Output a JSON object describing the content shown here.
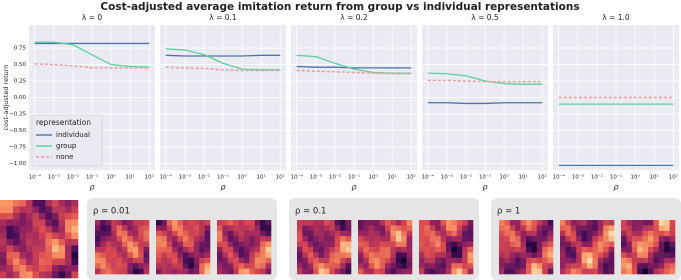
{
  "title": "Cost-adjusted average imitation return from group vs individual representations",
  "chart_data": [
    {
      "type": "line",
      "title": "λ = 0",
      "xlabel": "ρ",
      "ylabel": "cost-adjusted return",
      "log_x": true,
      "grid": true,
      "legend": "lower left",
      "legend_title": "representation",
      "x": [
        0.0001,
        0.001,
        0.01,
        0.1,
        1,
        10,
        100
      ],
      "xlim": [
        5e-05,
        200
      ],
      "xticks": [
        {
          "value": 0.0001,
          "label": "10⁻⁴"
        },
        {
          "value": 0.001,
          "label": "10⁻³"
        },
        {
          "value": 0.01,
          "label": "10⁻²"
        },
        {
          "value": 0.1,
          "label": "10⁻¹"
        },
        {
          "value": 1,
          "label": "10⁰"
        },
        {
          "value": 10,
          "label": "10¹"
        },
        {
          "value": 100,
          "label": "10²"
        }
      ],
      "ylim": [
        -1.1,
        1.1
      ],
      "yticks": [
        {
          "value": -1,
          "label": "−1.00"
        },
        {
          "value": -0.75,
          "label": "−0.75"
        },
        {
          "value": -0.5,
          "label": "−0.50"
        },
        {
          "value": -0.25,
          "label": "−0.25"
        },
        {
          "value": 0,
          "label": "0.00"
        },
        {
          "value": 0.25,
          "label": "0.25"
        },
        {
          "value": 0.5,
          "label": "0.50"
        },
        {
          "value": 0.75,
          "label": "0.75"
        }
      ],
      "series": [
        {
          "name": "individual",
          "color": "#4c72b0",
          "values": [
            0.82,
            0.82,
            0.82,
            0.82,
            0.82,
            0.82,
            0.82
          ]
        },
        {
          "name": "group",
          "color": "#5ccf9c",
          "values": [
            0.84,
            0.84,
            0.8,
            0.65,
            0.5,
            0.47,
            0.46
          ]
        },
        {
          "name": "none",
          "color": "#ee9a9a",
          "dashed": true,
          "values": [
            0.51,
            0.5,
            0.48,
            0.45,
            0.45,
            0.45,
            0.45
          ]
        }
      ]
    },
    {
      "type": "line",
      "title": "λ = 0.1",
      "xlabel": "ρ",
      "log_x": true,
      "grid": true,
      "x": [
        0.0001,
        0.001,
        0.01,
        0.1,
        1,
        10,
        100
      ],
      "xlim": [
        5e-05,
        200
      ],
      "xticks": [
        {
          "value": 0.0001,
          "label": "10⁻⁴"
        },
        {
          "value": 0.001,
          "label": "10⁻³"
        },
        {
          "value": 0.01,
          "label": "10⁻²"
        },
        {
          "value": 0.1,
          "label": "10⁻¹"
        },
        {
          "value": 1,
          "label": "10⁰"
        },
        {
          "value": 10,
          "label": "10¹"
        },
        {
          "value": 100,
          "label": "10²"
        }
      ],
      "ylim": [
        -1.1,
        1.1
      ],
      "series": [
        {
          "color": "#4c72b0",
          "values": [
            0.64,
            0.63,
            0.63,
            0.63,
            0.63,
            0.64,
            0.64
          ]
        },
        {
          "color": "#5ccf9c",
          "values": [
            0.74,
            0.72,
            0.65,
            0.52,
            0.43,
            0.42,
            0.42
          ]
        },
        {
          "color": "#ee9a9a",
          "dashed": true,
          "values": [
            0.46,
            0.45,
            0.44,
            0.42,
            0.41,
            0.41,
            0.41
          ]
        }
      ]
    },
    {
      "type": "line",
      "title": "λ = 0.2",
      "xlabel": "ρ",
      "log_x": true,
      "grid": true,
      "x": [
        0.0001,
        0.001,
        0.01,
        0.1,
        1,
        10,
        100
      ],
      "xlim": [
        5e-05,
        200
      ],
      "xticks": [
        {
          "value": 0.0001,
          "label": "10⁻⁴"
        },
        {
          "value": 0.001,
          "label": "10⁻³"
        },
        {
          "value": 0.01,
          "label": "10⁻²"
        },
        {
          "value": 0.1,
          "label": "10⁻¹"
        },
        {
          "value": 1,
          "label": "10⁰"
        },
        {
          "value": 10,
          "label": "10¹"
        },
        {
          "value": 100,
          "label": "10²"
        }
      ],
      "ylim": [
        -1.1,
        1.1
      ],
      "series": [
        {
          "color": "#4c72b0",
          "values": [
            0.47,
            0.46,
            0.46,
            0.45,
            0.45,
            0.45,
            0.45
          ]
        },
        {
          "color": "#5ccf9c",
          "values": [
            0.64,
            0.62,
            0.52,
            0.43,
            0.38,
            0.37,
            0.37
          ]
        },
        {
          "color": "#ee9a9a",
          "dashed": true,
          "values": [
            0.41,
            0.4,
            0.39,
            0.38,
            0.37,
            0.36,
            0.36
          ]
        }
      ]
    },
    {
      "type": "line",
      "title": "λ = 0.5",
      "xlabel": "ρ",
      "log_x": true,
      "grid": true,
      "x": [
        0.0001,
        0.001,
        0.01,
        0.1,
        1,
        10,
        100
      ],
      "xlim": [
        5e-05,
        200
      ],
      "xticks": [
        {
          "value": 0.0001,
          "label": "10⁻⁴"
        },
        {
          "value": 0.001,
          "label": "10⁻³"
        },
        {
          "value": 0.01,
          "label": "10⁻²"
        },
        {
          "value": 0.1,
          "label": "10⁻¹"
        },
        {
          "value": 1,
          "label": "10⁰"
        },
        {
          "value": 10,
          "label": "10¹"
        },
        {
          "value": 100,
          "label": "10²"
        }
      ],
      "ylim": [
        -1.1,
        1.1
      ],
      "series": [
        {
          "color": "#4c72b0",
          "values": [
            -0.08,
            -0.08,
            -0.09,
            -0.09,
            -0.08,
            -0.08,
            -0.08
          ]
        },
        {
          "color": "#5ccf9c",
          "values": [
            0.37,
            0.36,
            0.33,
            0.25,
            0.21,
            0.2,
            0.2
          ]
        },
        {
          "color": "#ee9a9a",
          "dashed": true,
          "values": [
            0.26,
            0.26,
            0.25,
            0.24,
            0.24,
            0.24,
            0.24
          ]
        }
      ]
    },
    {
      "type": "line",
      "title": "λ = 1.0",
      "xlabel": "ρ",
      "log_x": true,
      "grid": true,
      "x": [
        0.0001,
        0.001,
        0.01,
        0.1,
        1,
        10,
        100
      ],
      "xlim": [
        5e-05,
        200
      ],
      "xticks": [
        {
          "value": 0.0001,
          "label": "10⁻⁴"
        },
        {
          "value": 0.001,
          "label": "10⁻³"
        },
        {
          "value": 0.01,
          "label": "10⁻²"
        },
        {
          "value": 0.1,
          "label": "10⁻¹"
        },
        {
          "value": 1,
          "label": "10⁰"
        },
        {
          "value": 10,
          "label": "10¹"
        },
        {
          "value": 100,
          "label": "10²"
        }
      ],
      "ylim": [
        -1.1,
        1.1
      ],
      "series": [
        {
          "color": "#4c72b0",
          "values": [
            -1.03,
            -1.03,
            -1.03,
            -1.03,
            -1.03,
            -1.03,
            -1.03
          ]
        },
        {
          "color": "#5ccf9c",
          "values": [
            -0.1,
            -0.1,
            -0.1,
            -0.1,
            -0.1,
            -0.1,
            -0.1
          ]
        },
        {
          "color": "#ee9a9a",
          "dashed": true,
          "values": [
            0,
            0,
            0,
            0,
            0,
            0,
            0
          ]
        }
      ]
    }
  ],
  "samples": {
    "labels": [
      "ρ = 0.01",
      "ρ = 0.1",
      "ρ = 1"
    ]
  }
}
